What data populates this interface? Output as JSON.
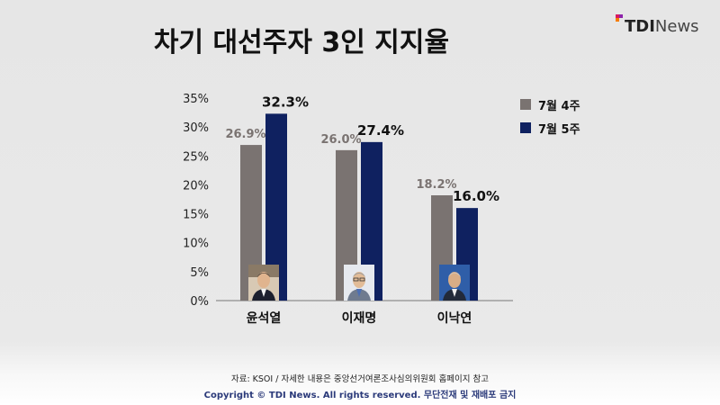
{
  "title": "차기 대선주자 3인 지지율",
  "logo": {
    "bold": "TDI",
    "light": "News"
  },
  "legend": [
    {
      "label": "7월 4주",
      "color": "#7a7371"
    },
    {
      "label": "7월 5주",
      "color": "#0f2160"
    }
  ],
  "chart_data": {
    "type": "bar",
    "categories": [
      "윤석열",
      "이재명",
      "이낙연"
    ],
    "series": [
      {
        "name": "7월 4주",
        "values": [
          26.9,
          26.0,
          18.2
        ],
        "labels": [
          "26.9%",
          "26.0%",
          "18.2%"
        ]
      },
      {
        "name": "7월 5주",
        "values": [
          32.3,
          27.4,
          16.0
        ],
        "labels": [
          "32.3%",
          "27.4%",
          "16.0%"
        ]
      }
    ],
    "yticks": [
      0,
      5,
      10,
      15,
      20,
      25,
      30,
      35
    ],
    "ytick_labels": [
      "0%",
      "5%",
      "10%",
      "15%",
      "20%",
      "25%",
      "30%",
      "35%"
    ],
    "ylim": [
      0,
      35
    ],
    "title": "차기 대선주자 3인 지지율",
    "xlabel": "",
    "ylabel": "",
    "legend_position": "right",
    "grid": false
  },
  "footer": {
    "source": "자료: KSOI / 자세한 내용은 중앙선거여론조사심의위원회 홈페이지 참고",
    "copyright": "Copyright © TDI News. All rights reserved. 무단전재 및 재배포 금지"
  }
}
